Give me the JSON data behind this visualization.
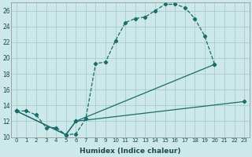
{
  "xlabel": "Humidex (Indice chaleur)",
  "background_color": "#cce8e8",
  "grid_color": "#aacccc",
  "line_color": "#1a6b6b",
  "xlim": [
    -0.5,
    23.5
  ],
  "ylim": [
    10,
    27
  ],
  "xticks": [
    0,
    1,
    2,
    3,
    4,
    5,
    6,
    7,
    8,
    9,
    10,
    11,
    12,
    13,
    14,
    15,
    16,
    17,
    18,
    19,
    20,
    21,
    22,
    23
  ],
  "yticks": [
    10,
    12,
    14,
    16,
    18,
    20,
    22,
    24,
    26
  ],
  "line1_x": [
    0,
    1,
    2,
    3,
    4,
    5,
    6,
    7,
    8,
    9,
    10,
    11,
    12,
    13,
    14,
    15,
    16,
    17,
    18,
    19,
    20
  ],
  "line1_y": [
    13.3,
    13.3,
    12.8,
    11.2,
    11.2,
    10.3,
    10.4,
    12.3,
    19.3,
    19.5,
    22.2,
    24.5,
    25.0,
    25.2,
    26.0,
    26.8,
    26.8,
    26.4,
    25.0,
    22.8,
    19.2
  ],
  "line1_style": "--",
  "line2_x": [
    0,
    5,
    6,
    20
  ],
  "line2_y": [
    13.3,
    10.3,
    12.0,
    19.2
  ],
  "line2_style": "-",
  "line3_x": [
    0,
    5,
    6,
    23
  ],
  "line3_y": [
    13.3,
    10.3,
    12.0,
    14.5
  ],
  "line3_style": "-"
}
